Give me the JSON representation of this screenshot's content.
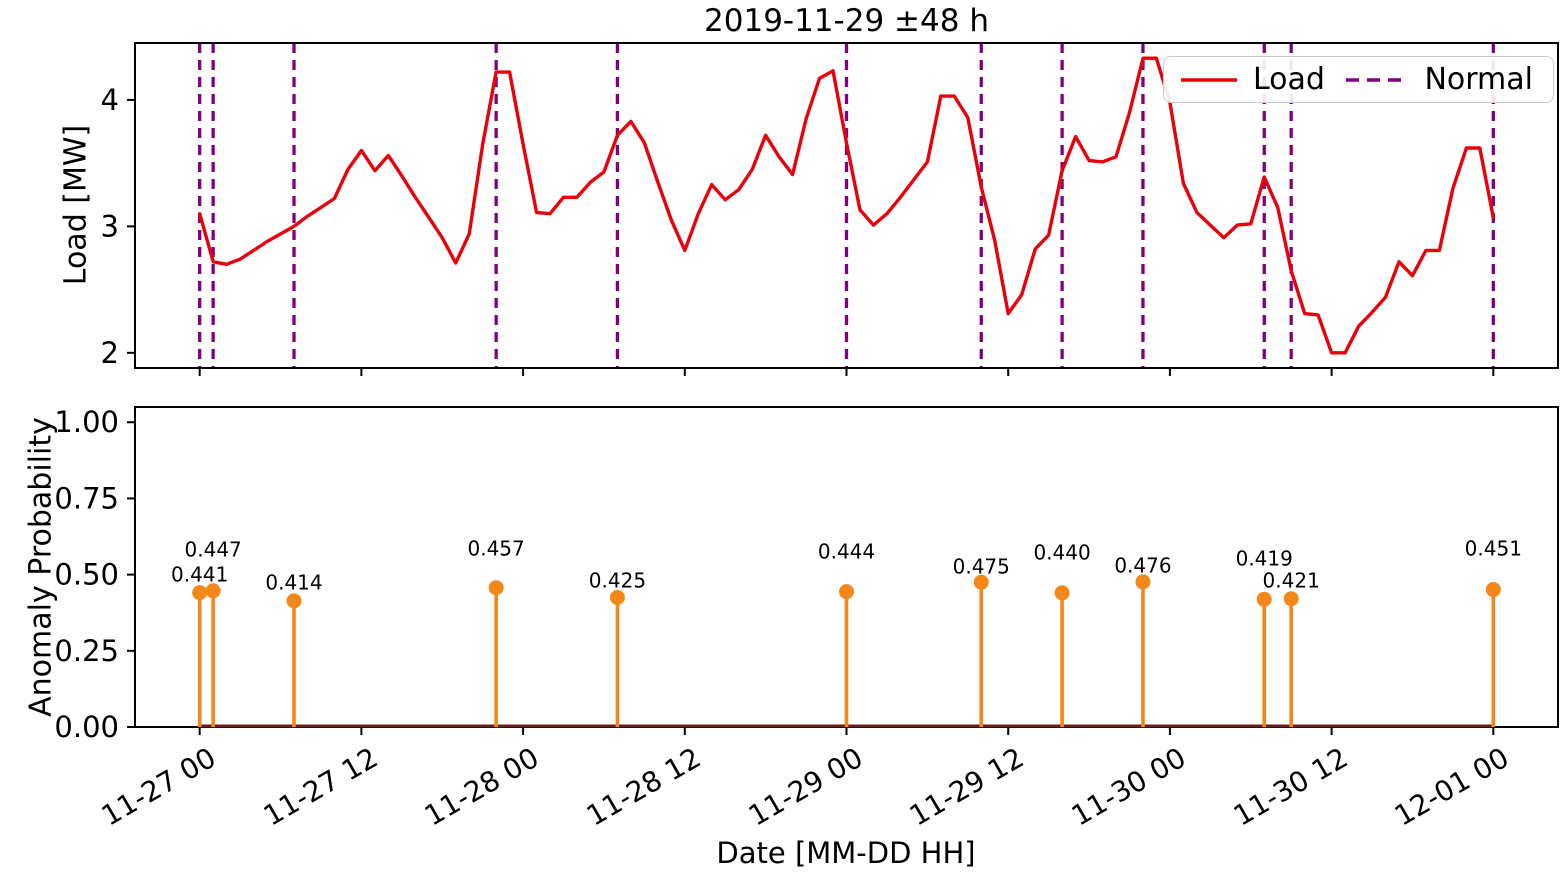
{
  "figure": {
    "title": "2019-11-29 ±48 h"
  },
  "chart_data": [
    {
      "type": "line",
      "title": "2019-11-29 ±48 h",
      "ylabel": "Load [MW]",
      "yticks": [
        2,
        3,
        4
      ],
      "ylim": [
        1.88,
        4.45
      ],
      "xlim_hours": [
        -4.8,
        100.8
      ],
      "x_unit": "hours since tick 11-27 00",
      "grid": false,
      "legend": {
        "position": "upper right",
        "entries": [
          {
            "label": "Load",
            "color": "#e8000b",
            "line_style": "solid"
          },
          {
            "label": "Normal",
            "color": "#800080",
            "line_style": "dashed"
          }
        ]
      },
      "series": [
        {
          "name": "Load",
          "color": "#e8000b",
          "x_start_hour": 0,
          "x_step_hours": 1,
          "values": [
            3.1,
            2.72,
            2.7,
            2.74,
            2.81,
            2.88,
            2.94,
            3.0,
            3.08,
            3.15,
            3.22,
            3.45,
            3.6,
            3.44,
            3.56,
            3.4,
            3.23,
            3.07,
            2.91,
            2.71,
            2.94,
            3.65,
            4.22,
            4.22,
            3.65,
            3.11,
            3.1,
            3.23,
            3.23,
            3.35,
            3.43,
            3.72,
            3.83,
            3.66,
            3.35,
            3.05,
            2.81,
            3.1,
            3.33,
            3.21,
            3.29,
            3.45,
            3.72,
            3.55,
            3.41,
            3.85,
            4.17,
            4.23,
            3.66,
            3.13,
            3.01,
            3.1,
            3.23,
            3.37,
            3.51,
            4.03,
            4.03,
            3.86,
            3.31,
            2.89,
            2.31,
            2.46,
            2.82,
            2.93,
            3.44,
            3.71,
            3.52,
            3.51,
            3.55,
            3.9,
            4.33,
            4.33,
            3.98,
            3.34,
            3.11,
            3.01,
            2.91,
            3.01,
            3.02,
            3.39,
            3.15,
            2.65,
            2.31,
            2.3,
            2.0,
            2.0,
            2.21,
            2.32,
            2.44,
            2.72,
            2.61,
            2.81,
            2.81,
            3.3,
            3.62,
            3.62,
            3.07
          ]
        }
      ],
      "normal_lines": {
        "label": "Normal",
        "color": "#800080",
        "hours": [
          0,
          1,
          7,
          22,
          31,
          48,
          58,
          64,
          70,
          79,
          81,
          96
        ]
      }
    },
    {
      "type": "stem",
      "ylabel": "Anomaly Probability",
      "xlabel": "Date [MM-DD HH]",
      "yticks": [
        "1.00",
        "0.75",
        "0.50",
        "0.25",
        "0.00"
      ],
      "ylim": [
        0,
        1.05
      ],
      "xlim_hours": [
        -4.8,
        100.8
      ],
      "grid": false,
      "xticks": {
        "hours": [
          0,
          12,
          24,
          36,
          48,
          60,
          72,
          84,
          96
        ],
        "labels": [
          "11-27 00",
          "11-27 12",
          "11-28 00",
          "11-28 12",
          "11-29 00",
          "11-29 12",
          "11-30 00",
          "11-30 12",
          "12-01 00"
        ],
        "rotation_deg": 30
      },
      "stem_color": "#f3871a",
      "baseline_color": "#6b1d1d",
      "stems": [
        {
          "hour": 0,
          "value": 0.441,
          "label": "0.441",
          "label_y": 0.5
        },
        {
          "hour": 1,
          "value": 0.447,
          "label": "0.447",
          "label_y": 0.582
        },
        {
          "hour": 7,
          "value": 0.414,
          "label": "0.414",
          "label_y": 0.474
        },
        {
          "hour": 22,
          "value": 0.457,
          "label": "0.457",
          "label_y": 0.586
        },
        {
          "hour": 31,
          "value": 0.425,
          "label": "0.425",
          "label_y": 0.48
        },
        {
          "hour": 48,
          "value": 0.444,
          "label": "0.444",
          "label_y": 0.576
        },
        {
          "hour": 58,
          "value": 0.475,
          "label": "0.475",
          "label_y": 0.526
        },
        {
          "hour": 64,
          "value": 0.44,
          "label": "0.440",
          "label_y": 0.572
        },
        {
          "hour": 70,
          "value": 0.476,
          "label": "0.476",
          "label_y": 0.53
        },
        {
          "hour": 79,
          "value": 0.419,
          "label": "0.419",
          "label_y": 0.553
        },
        {
          "hour": 81,
          "value": 0.421,
          "label": "0.421",
          "label_y": 0.48
        },
        {
          "hour": 96,
          "value": 0.451,
          "label": "0.451",
          "label_y": 0.586
        }
      ]
    }
  ]
}
